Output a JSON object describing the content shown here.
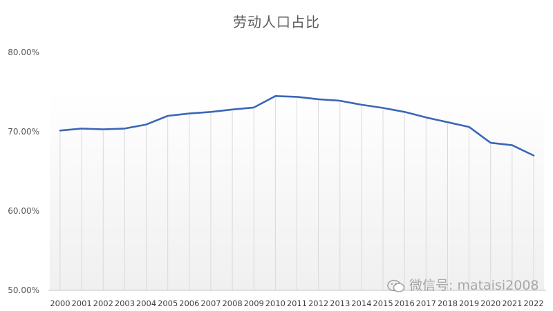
{
  "chart_data": {
    "type": "line",
    "title": "劳动人口占比",
    "xlabel": "",
    "ylabel": "",
    "categories": [
      "2000",
      "2001",
      "2002",
      "2003",
      "2004",
      "2005",
      "2006",
      "2007",
      "2008",
      "2009",
      "2010",
      "2011",
      "2012",
      "2013",
      "2014",
      "2015",
      "2016",
      "2017",
      "2018",
      "2019",
      "2020",
      "2021",
      "2022"
    ],
    "series": [
      {
        "name": "",
        "values": [
          70.15,
          70.4,
          70.3,
          70.4,
          70.9,
          72.0,
          72.3,
          72.5,
          72.8,
          73.05,
          74.5,
          74.4,
          74.1,
          73.9,
          73.4,
          73.0,
          72.5,
          71.8,
          71.2,
          70.6,
          68.6,
          68.3,
          67.0
        ]
      }
    ],
    "ylim": [
      50,
      80
    ],
    "yticks": [
      "50.00%",
      "60.00%",
      "70.00%",
      "80.00%"
    ],
    "ytick_values": [
      50,
      60,
      70,
      80
    ],
    "grid": "vertical",
    "legend": "none",
    "colors": {
      "line": "#3A66B8",
      "grid": "#D9D9D9",
      "axis": "#BFBFBF"
    }
  },
  "watermark": {
    "text": "微信号: mataisi2008",
    "icon": "wechat-icon"
  }
}
